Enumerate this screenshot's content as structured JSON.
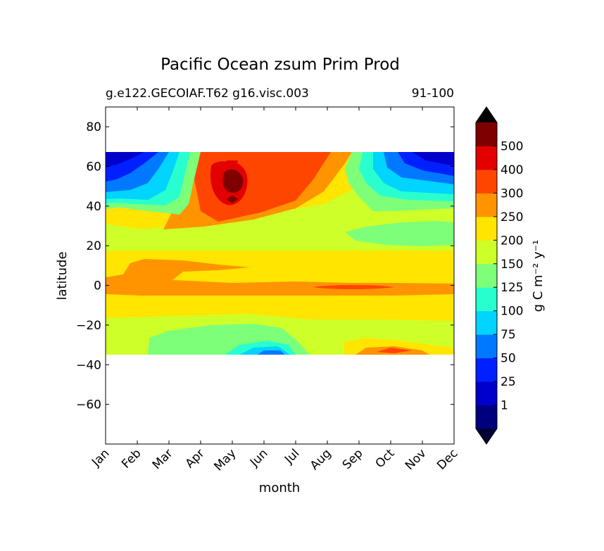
{
  "chart_data": {
    "type": "heatmap",
    "title": "Pacific Ocean zsum Prim Prod",
    "subtitle_left": "g.e122.GECOIAF.T62 g16.visc.003",
    "subtitle_right": "91-100",
    "xlabel": "month",
    "ylabel": "latitude",
    "x_tick_labels": [
      "Jan",
      "Feb",
      "Mar",
      "Apr",
      "May",
      "Jun",
      "Jul",
      "Aug",
      "Sep",
      "Oct",
      "Nov",
      "Dec"
    ],
    "y_ticks": [
      80,
      60,
      40,
      20,
      0,
      -20,
      -40,
      -60
    ],
    "y_tick_labels": [
      "80",
      "60",
      "40",
      "20",
      "0",
      "−20",
      "−40",
      "−60"
    ],
    "ylim": [
      -80,
      90
    ],
    "data_lat_range": [
      -34,
      67
    ],
    "colorbar": {
      "label": "g C m⁻² y⁻¹",
      "levels": [
        0,
        1,
        25,
        50,
        75,
        100,
        125,
        150,
        200,
        250,
        300,
        400,
        500,
        600
      ],
      "tick_labels": [
        "1",
        "25",
        "50",
        "75",
        "100",
        "125",
        "150",
        "200",
        "250",
        "300",
        "400",
        "500"
      ],
      "colors": [
        "#00007f",
        "#0000cd",
        "#0020ff",
        "#0078ff",
        "#00d4ff",
        "#29ffce",
        "#7dff7a",
        "#ceff29",
        "#ffe500",
        "#ff9400",
        "#ff4600",
        "#e30000",
        "#7f0000"
      ],
      "under_color": "#000033",
      "over_color": "#000000",
      "extend": "both"
    },
    "field_description_points": [
      {
        "month": "May",
        "lat": 52,
        "value": 550
      },
      {
        "month": "Jun",
        "lat": 50,
        "value": 350
      },
      {
        "month": "Sep",
        "lat": -1,
        "value": 320
      },
      {
        "month": "Jan",
        "lat": 5,
        "value": 230
      },
      {
        "month": "May",
        "lat": -25,
        "value": 140
      },
      {
        "month": "Sep",
        "lat": 25,
        "value": 140
      },
      {
        "month": "Jan",
        "lat": 62,
        "value": 15
      },
      {
        "month": "Dec",
        "lat": 62,
        "value": 15
      }
    ]
  }
}
